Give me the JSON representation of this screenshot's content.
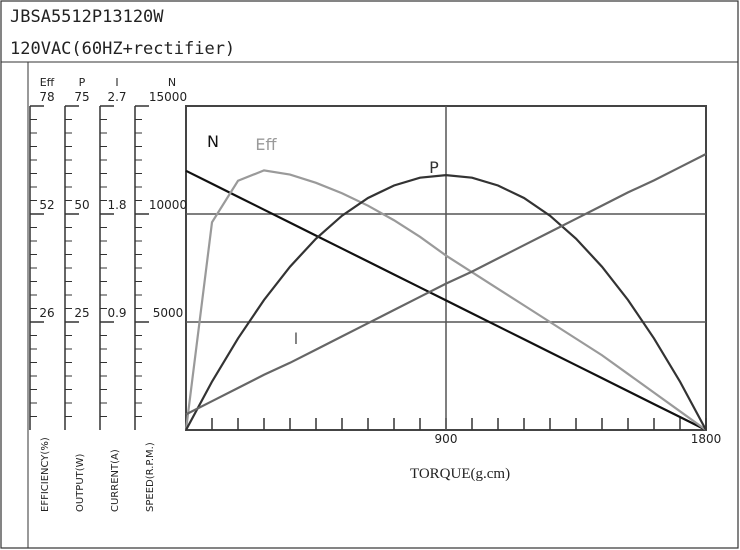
{
  "chart_data": {
    "type": "line",
    "title": "JBSA5512P13120W",
    "subtitle": "120VAC(60HZ+rectifier)",
    "x_label": "TORQUE(g.cm)",
    "xlim": [
      0,
      1800
    ],
    "xticks": [
      900,
      1800
    ],
    "grid": true,
    "x": [
      0,
      90,
      180,
      270,
      360,
      450,
      540,
      630,
      720,
      810,
      900,
      990,
      1080,
      1170,
      1260,
      1350,
      1440,
      1530,
      1620,
      1710,
      1800
    ],
    "left_axes": [
      {
        "name": "Eff",
        "label": "EFFICIENCY(%)",
        "ylim": [
          0,
          78
        ],
        "yticks": [
          26,
          52,
          78
        ]
      },
      {
        "name": "P",
        "label": "OUTPUT(W)",
        "ylim": [
          0,
          75
        ],
        "yticks": [
          25,
          50,
          75
        ]
      },
      {
        "name": "I",
        "label": "CURRENT(A)",
        "ylim": [
          0,
          2.7
        ],
        "yticks": [
          0.9,
          1.8,
          2.7
        ]
      },
      {
        "name": "N",
        "label": "SPEED(R.P.M.)",
        "ylim": [
          0,
          15000
        ],
        "yticks": [
          5000,
          10000,
          15000
        ]
      }
    ],
    "series": [
      {
        "name": "N",
        "axis": 3,
        "color": "#111111",
        "values": [
          12000,
          11400,
          10800,
          10200,
          9600,
          9000,
          8400,
          7800,
          7200,
          6600,
          6000,
          5400,
          4800,
          4200,
          3600,
          3000,
          2400,
          1800,
          1200,
          600,
          0
        ]
      },
      {
        "name": "Eff",
        "axis": 0,
        "color": "#9a9a9a",
        "values": [
          0,
          50,
          60,
          62.5,
          61.5,
          59.5,
          57,
          54,
          50.5,
          46.5,
          42,
          38,
          34,
          30,
          26,
          22,
          18,
          13.5,
          9,
          4.5,
          0
        ]
      },
      {
        "name": "P",
        "axis": 1,
        "color": "#333333",
        "values": [
          0,
          11.2,
          21.2,
          30.1,
          37.8,
          44.3,
          49.6,
          53.7,
          56.6,
          58.4,
          59,
          58.4,
          56.6,
          53.7,
          49.6,
          44.3,
          37.8,
          30.1,
          21.2,
          11.2,
          0
        ]
      },
      {
        "name": "I",
        "axis": 2,
        "color": "#666666",
        "values": [
          0.13,
          0.24,
          0.35,
          0.46,
          0.56,
          0.67,
          0.78,
          0.89,
          1.0,
          1.11,
          1.22,
          1.32,
          1.43,
          1.54,
          1.65,
          1.76,
          1.87,
          1.98,
          2.08,
          2.19,
          2.3
        ]
      }
    ]
  }
}
